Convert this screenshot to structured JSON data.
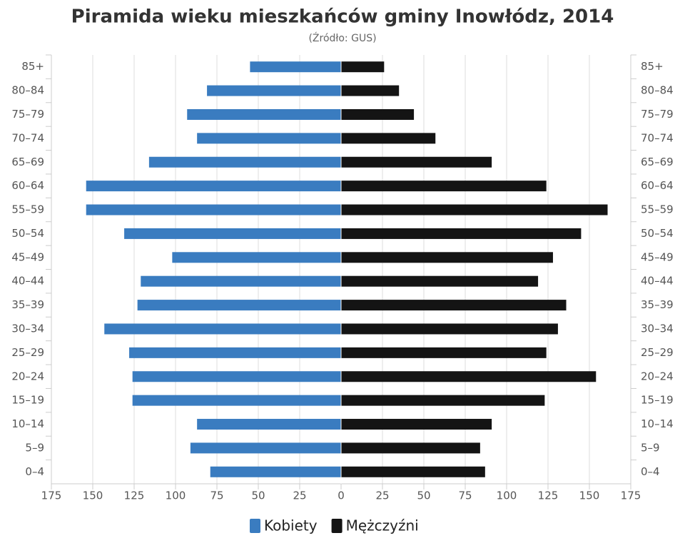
{
  "chart_data": {
    "type": "pyramid",
    "title": "Piramida wieku mieszkańców gminy Inowłódz, 2014",
    "subtitle": "(Źródło: GUS)",
    "categories": [
      "85+",
      "80–84",
      "75–79",
      "70–74",
      "65–69",
      "60–64",
      "55–59",
      "50–54",
      "45–49",
      "40–44",
      "35–39",
      "30–34",
      "25–29",
      "20–24",
      "15–19",
      "10–14",
      "5–9",
      "0–4"
    ],
    "series": [
      {
        "name": "Kobiety",
        "color": "#3a7cc0",
        "values": [
          55,
          81,
          93,
          87,
          116,
          154,
          154,
          131,
          102,
          121,
          123,
          143,
          128,
          126,
          126,
          87,
          91,
          79
        ]
      },
      {
        "name": "Mężczyźni",
        "color": "#141414",
        "values": [
          26,
          35,
          44,
          57,
          91,
          124,
          161,
          145,
          128,
          119,
          136,
          131,
          124,
          154,
          123,
          91,
          84,
          87
        ]
      }
    ],
    "xlim": [
      -175,
      175
    ],
    "xticks": [
      {
        "value": -175,
        "label": "175"
      },
      {
        "value": -150,
        "label": "150"
      },
      {
        "value": -125,
        "label": "125"
      },
      {
        "value": -100,
        "label": "100"
      },
      {
        "value": -75,
        "label": "75"
      },
      {
        "value": -50,
        "label": "50"
      },
      {
        "value": -25,
        "label": "25"
      },
      0,
      25,
      50,
      75,
      100,
      125,
      150,
      175
    ],
    "grid": true,
    "legend": "bottom"
  }
}
